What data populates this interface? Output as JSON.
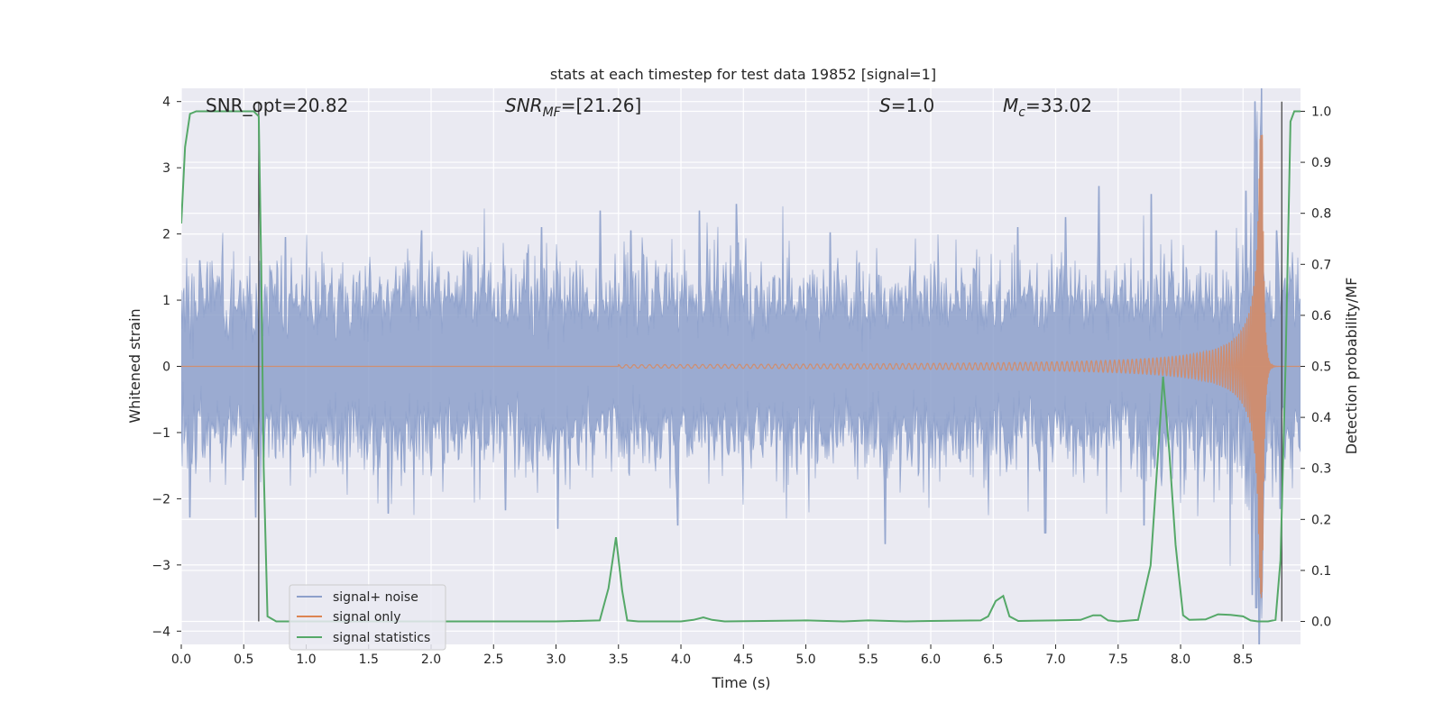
{
  "chart_data": {
    "type": "line",
    "title": "stats at each timestep for test data 19852 [signal=1]",
    "xlabel": "Time (s)",
    "ylabel_left": "Whitened strain",
    "ylabel_right": "Detection probability/MF",
    "xlim": [
      0.0,
      8.96
    ],
    "ylim_left": [
      -4.2,
      4.2
    ],
    "ylim_right": [
      -0.045,
      1.045
    ],
    "x_ticks": [
      "0.0",
      "0.5",
      "1.0",
      "1.5",
      "2.0",
      "2.5",
      "3.0",
      "3.5",
      "4.0",
      "4.5",
      "5.0",
      "5.5",
      "6.0",
      "6.5",
      "7.0",
      "7.5",
      "8.0",
      "8.5"
    ],
    "x_tick_values": [
      0.0,
      0.5,
      1.0,
      1.5,
      2.0,
      2.5,
      3.0,
      3.5,
      4.0,
      4.5,
      5.0,
      5.5,
      6.0,
      6.5,
      7.0,
      7.5,
      8.0,
      8.5
    ],
    "y_left_ticks": [
      "−4",
      "−3",
      "−2",
      "−1",
      "0",
      "1",
      "2",
      "3",
      "4"
    ],
    "y_left_tick_values": [
      -4,
      -3,
      -2,
      -1,
      0,
      1,
      2,
      3,
      4
    ],
    "y_right_ticks": [
      "0.0",
      "0.1",
      "0.2",
      "0.3",
      "0.4",
      "0.5",
      "0.6",
      "0.7",
      "0.8",
      "0.9",
      "1.0"
    ],
    "y_right_tick_values": [
      0.0,
      0.1,
      0.2,
      0.3,
      0.4,
      0.5,
      0.6,
      0.7,
      0.8,
      0.9,
      1.0
    ],
    "annotations": {
      "snr_opt": "SNR_opt=20.82",
      "snr_mf_main": "SNR",
      "snr_mf_sub": "MF",
      "snr_mf_value": "=[21.26]",
      "s_symbol": "S",
      "s_value": "=1.0",
      "mc_main": "M",
      "mc_sub": "c",
      "mc_value": "=33.02"
    },
    "vertical_markers": [
      0.62,
      8.81
    ],
    "series": [
      {
        "name": "signal+ noise",
        "color": "#8da0cb",
        "kind": "noise",
        "noise_sigma": 0.62,
        "duration": 8.96,
        "spikes": [
          [
            0.07,
            -2.28
          ],
          [
            0.15,
            1.6
          ],
          [
            0.5,
            -1.72
          ],
          [
            0.6,
            -2.28
          ],
          [
            0.84,
            1.95
          ],
          [
            1.66,
            -2.22
          ],
          [
            1.93,
            2.05
          ],
          [
            2.6,
            -2.17
          ],
          [
            2.89,
            2.1
          ],
          [
            3.02,
            -2.45
          ],
          [
            3.36,
            2.35
          ],
          [
            3.6,
            2.05
          ],
          [
            3.98,
            -2.4
          ],
          [
            4.15,
            2.35
          ],
          [
            4.45,
            2.45
          ],
          [
            5.2,
            2.02
          ],
          [
            5.64,
            -2.68
          ],
          [
            6.7,
            2.1
          ],
          [
            6.92,
            -2.52
          ],
          [
            7.08,
            2.25
          ],
          [
            7.35,
            2.72
          ],
          [
            7.71,
            -2.4
          ],
          [
            7.77,
            2.6
          ],
          [
            8.29,
            2.05
          ],
          [
            8.53,
            2.65
          ],
          [
            8.58,
            -3.45
          ],
          [
            8.6,
            4.0
          ],
          [
            8.61,
            -3.65
          ],
          [
            8.64,
            2.85
          ],
          [
            8.77,
            2.05
          ],
          [
            8.8,
            -2.15
          ]
        ]
      },
      {
        "name": "signal only",
        "color": "#dd8452",
        "kind": "chirp",
        "chirp": {
          "tc": 8.655,
          "onset": 3.5,
          "amp_scale": 0.11,
          "amp_exp": 0.9,
          "amp_max": 3.5,
          "phase_scale": 300,
          "phase_exp": 0.62,
          "ringdown": 0.015
        }
      },
      {
        "name": "signal statistics",
        "color": "#55a868",
        "kind": "probability",
        "axis": "right",
        "points": [
          [
            0.0,
            0.78
          ],
          [
            0.03,
            0.93
          ],
          [
            0.07,
            0.995
          ],
          [
            0.12,
            1.0
          ],
          [
            0.3,
            1.0
          ],
          [
            0.5,
            1.0
          ],
          [
            0.58,
            1.0
          ],
          [
            0.62,
            0.99
          ],
          [
            0.64,
            0.7
          ],
          [
            0.66,
            0.3
          ],
          [
            0.69,
            0.01
          ],
          [
            0.76,
            0.0
          ],
          [
            1.0,
            0.0
          ],
          [
            2.0,
            0.0
          ],
          [
            3.0,
            0.0
          ],
          [
            3.35,
            0.002
          ],
          [
            3.42,
            0.065
          ],
          [
            3.48,
            0.165
          ],
          [
            3.53,
            0.06
          ],
          [
            3.57,
            0.002
          ],
          [
            3.66,
            0.0
          ],
          [
            4.0,
            0.0
          ],
          [
            4.1,
            0.003
          ],
          [
            4.18,
            0.008
          ],
          [
            4.25,
            0.003
          ],
          [
            4.35,
            0.0
          ],
          [
            5.0,
            0.002
          ],
          [
            5.3,
            0.0
          ],
          [
            5.5,
            0.002
          ],
          [
            5.8,
            0.0
          ],
          [
            6.0,
            0.001
          ],
          [
            6.4,
            0.002
          ],
          [
            6.46,
            0.01
          ],
          [
            6.52,
            0.04
          ],
          [
            6.58,
            0.05
          ],
          [
            6.63,
            0.01
          ],
          [
            6.7,
            0.001
          ],
          [
            7.0,
            0.002
          ],
          [
            7.2,
            0.003
          ],
          [
            7.3,
            0.012
          ],
          [
            7.36,
            0.012
          ],
          [
            7.42,
            0.002
          ],
          [
            7.5,
            0.0
          ],
          [
            7.66,
            0.003
          ],
          [
            7.76,
            0.11
          ],
          [
            7.82,
            0.33
          ],
          [
            7.86,
            0.48
          ],
          [
            7.91,
            0.33
          ],
          [
            7.96,
            0.15
          ],
          [
            8.02,
            0.012
          ],
          [
            8.07,
            0.003
          ],
          [
            8.2,
            0.004
          ],
          [
            8.3,
            0.014
          ],
          [
            8.4,
            0.013
          ],
          [
            8.5,
            0.01
          ],
          [
            8.56,
            0.002
          ],
          [
            8.62,
            0.0
          ],
          [
            8.7,
            0.0
          ],
          [
            8.76,
            0.003
          ],
          [
            8.8,
            0.12
          ],
          [
            8.84,
            0.5
          ],
          [
            8.88,
            0.98
          ],
          [
            8.91,
            1.0
          ],
          [
            8.96,
            1.0
          ]
        ]
      }
    ],
    "legend_location": "lower-left",
    "grid": true
  }
}
